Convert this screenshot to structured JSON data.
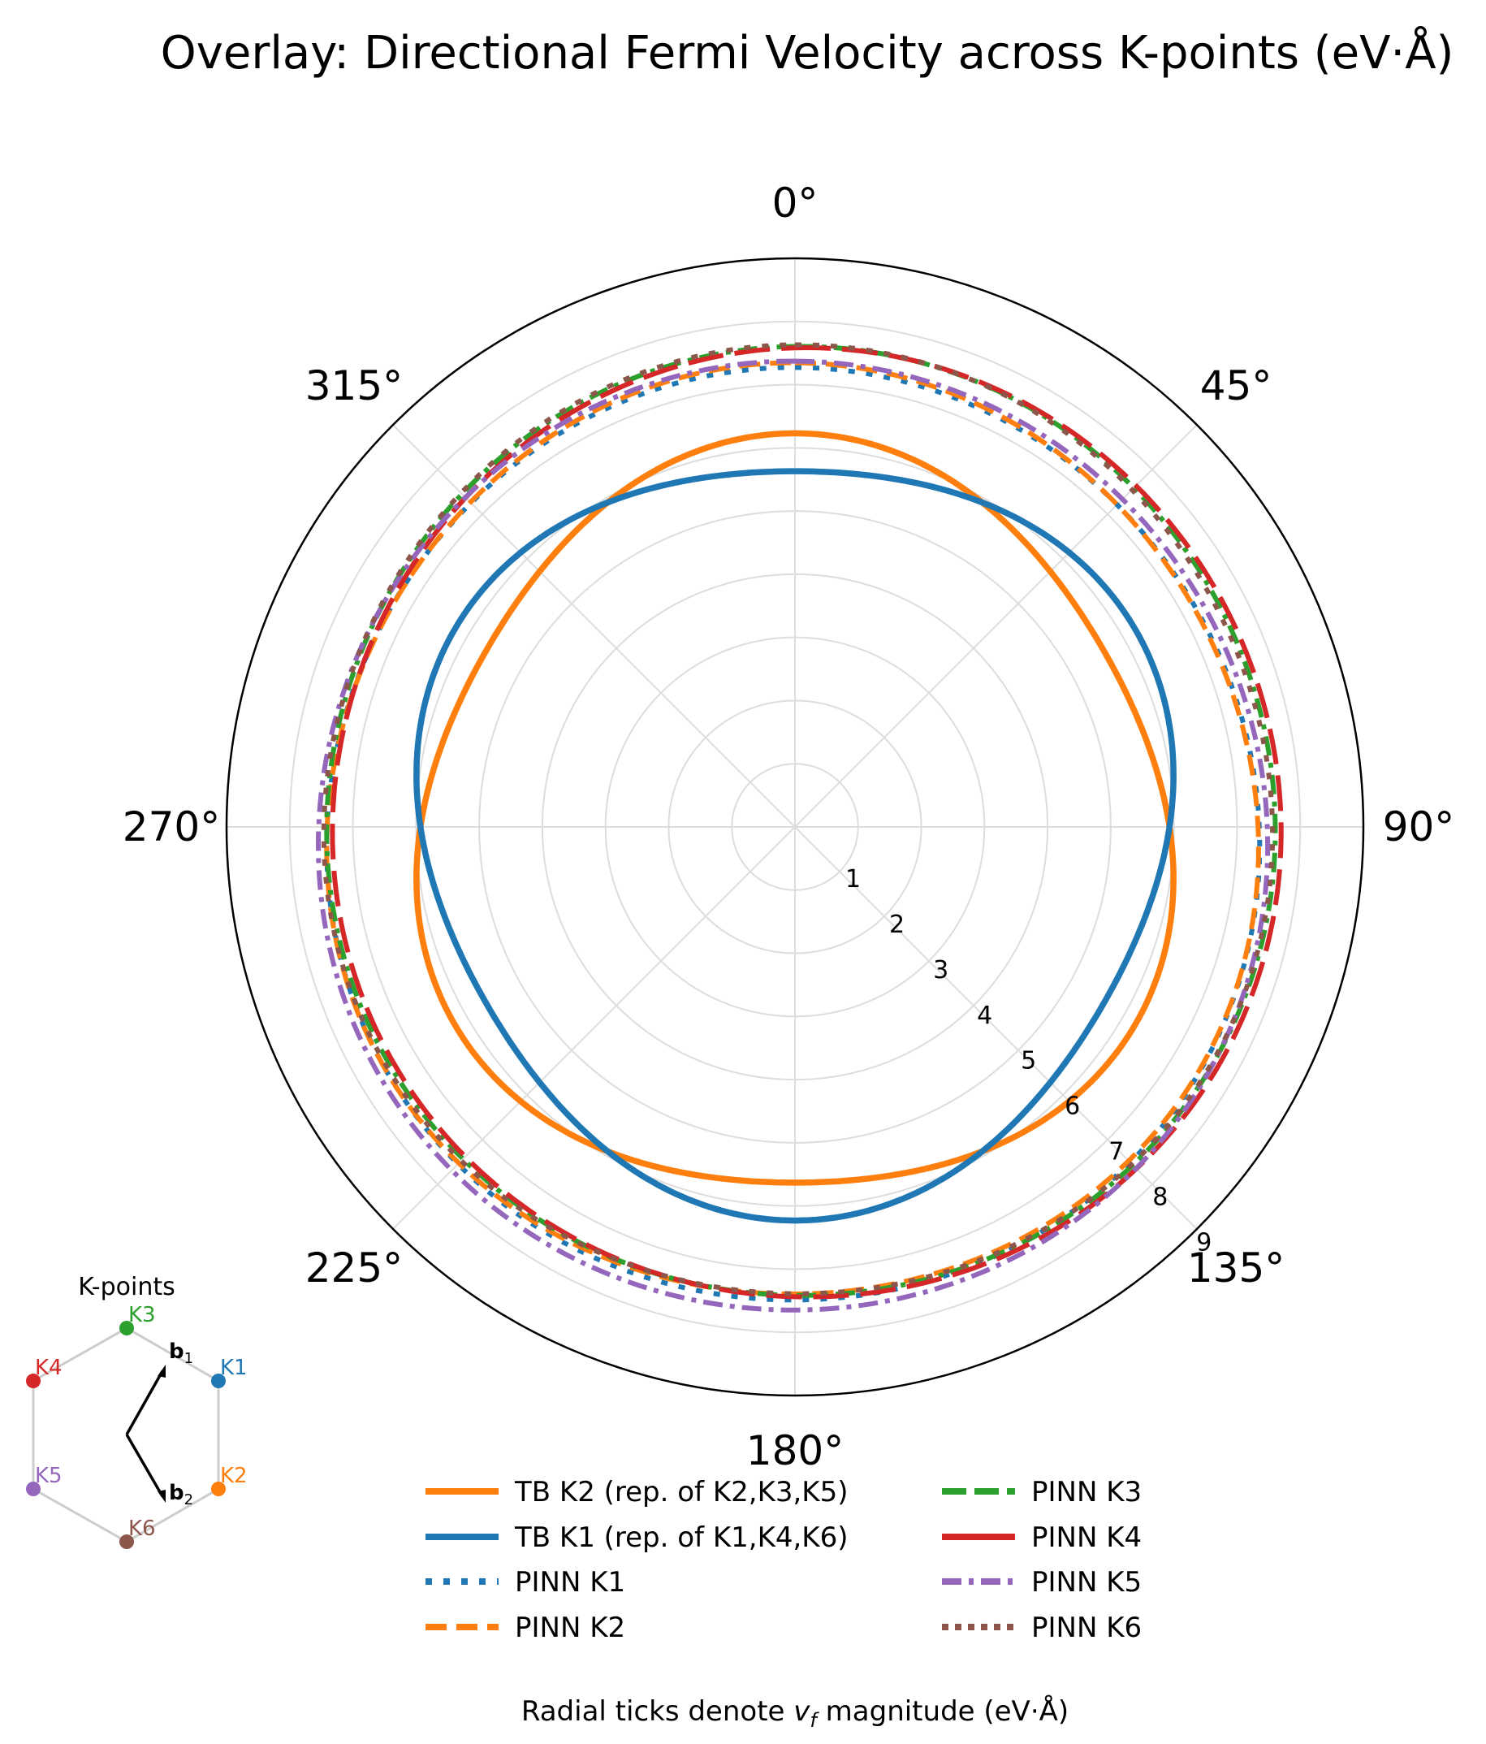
{
  "chart_data": {
    "type": "line",
    "subtype": "polar",
    "title": "Overlay: Directional Fermi Velocity across K-points (eV·Å)",
    "angular_direction": "clockwise",
    "zero_location": "top",
    "angle_ticks": [
      "0°",
      "45°",
      "90°",
      "135°",
      "180°",
      "225°",
      "270°",
      "315°"
    ],
    "radial_ticks": [
      "1",
      "2",
      "3",
      "4",
      "5",
      "6",
      "7",
      "8",
      "9"
    ],
    "rlim": [
      0,
      9
    ],
    "grid": true,
    "caption_prefix": "Radial ticks denote ",
    "caption_var": "v",
    "caption_sub": "f",
    "caption_suffix": " magnitude (eV·Å)",
    "series": [
      {
        "name": "TB K2 (rep. of K2,K3,K5)",
        "color": "#ff7f0e",
        "style": "solid",
        "model": "fourier",
        "r0": 5.93,
        "a3": 0.3,
        "phase3": 0
      },
      {
        "name": "TB K1 (rep. of K1,K4,K6)",
        "color": "#1f77b4",
        "style": "solid",
        "model": "fourier",
        "r0": 5.93,
        "a3": 0.3,
        "phase3": 180
      },
      {
        "name": "PINN K1",
        "color": "#1f77b4",
        "style": "dotted",
        "model": "fourier",
        "r0": 7.38,
        "a1": -0.16,
        "phase1": 10,
        "a3": 0.05,
        "phase3": 0
      },
      {
        "name": "PINN K2",
        "color": "#ff7f0e",
        "style": "dashed",
        "model": "fourier",
        "r0": 7.37,
        "a1": -0.11,
        "phase1": 20,
        "a3": 0.08,
        "phase3": 0
      },
      {
        "name": "PINN K3",
        "color": "#2ca02c",
        "style": "dashdot",
        "model": "fourier",
        "r0": 7.51,
        "a1": 0.11,
        "phase1": 60,
        "a3": 0.04,
        "phase3": 0
      },
      {
        "name": "PINN K4",
        "color": "#d62728",
        "style": "longdash",
        "model": "fourier",
        "r0": 7.51,
        "a1": 0.19,
        "phase1": 80,
        "a3": 0.04,
        "phase3": 0
      },
      {
        "name": "PINN K5",
        "color": "#9467bd",
        "style": "dashdot",
        "model": "fourier",
        "r0": 7.51,
        "a1": -0.18,
        "phase1": 10,
        "a3": 0.04,
        "phase3": 0
      },
      {
        "name": "PINN K6",
        "color": "#8c564b",
        "style": "dotted",
        "model": "fourier",
        "r0": 7.51,
        "a1": 0.08,
        "phase1": 40,
        "a3": 0.06,
        "phase3": 0
      }
    ]
  },
  "inset": {
    "title": "K-points",
    "points": [
      {
        "label": "K1",
        "color": "#1f77b4"
      },
      {
        "label": "K2",
        "color": "#ff7f0e"
      },
      {
        "label": "K3",
        "color": "#2ca02c"
      },
      {
        "label": "K4",
        "color": "#d62728"
      },
      {
        "label": "K5",
        "color": "#9467bd"
      },
      {
        "label": "K6",
        "color": "#8c564b"
      }
    ],
    "vectors": [
      {
        "label": "b",
        "sub": "1"
      },
      {
        "label": "b",
        "sub": "2"
      }
    ]
  }
}
